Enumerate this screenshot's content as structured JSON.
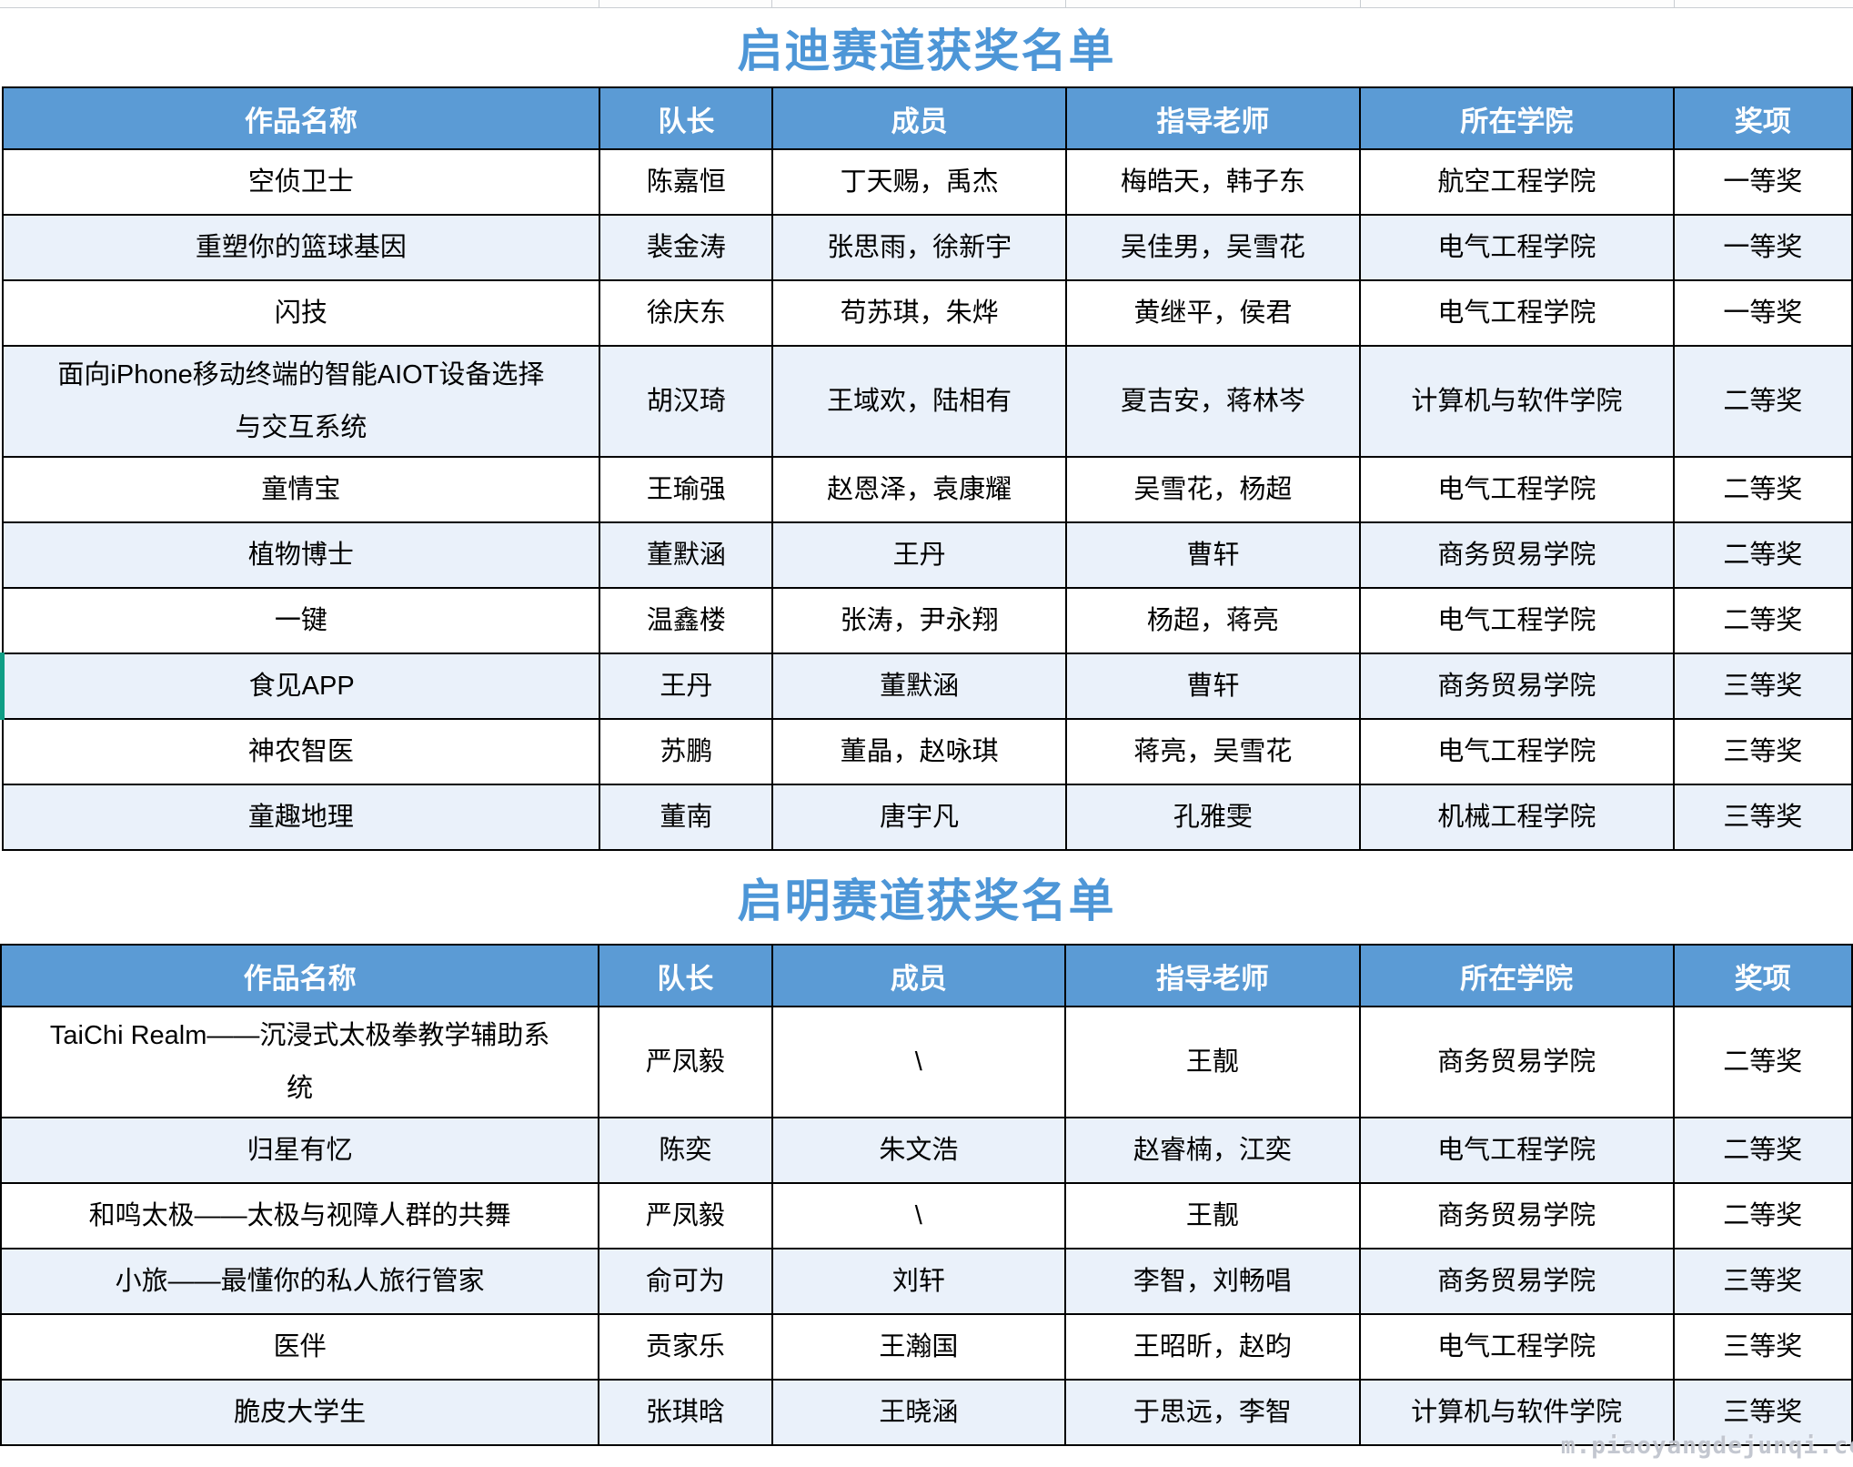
{
  "colors": {
    "header_bg": "#5B9BD5",
    "header_text": "#FFFFFF",
    "row_alt": "#EAF1FA",
    "title_color": "#4D96D7",
    "highlight_green": "#0F9E85",
    "border": "#000000"
  },
  "watermark": "m.piaoyangdejunqi.co",
  "sections": [
    {
      "title": "启迪赛道获奖名单",
      "columns": [
        "作品名称",
        "队长",
        "成员",
        "指导老师",
        "所在学院",
        "奖项"
      ],
      "highlighted_row": 7,
      "rows": [
        [
          "空侦卫士",
          "陈嘉恒",
          "丁天赐，禹杰",
          "梅皓天，韩子东",
          "航空工程学院",
          "一等奖"
        ],
        [
          "重塑你的篮球基因",
          "裴金涛",
          "张思雨，徐新宇",
          "吴佳男，吴雪花",
          "电气工程学院",
          "一等奖"
        ],
        [
          "闪技",
          "徐庆东",
          "苟苏琪，朱烨",
          "黄继平，侯君",
          "电气工程学院",
          "一等奖"
        ],
        [
          "面向iPhone移动终端的智能AIOT设备选择与交互系统",
          "胡汉琦",
          "王域欢，陆相有",
          "夏吉安，蒋林岑",
          "计算机与软件学院",
          "二等奖"
        ],
        [
          "童情宝",
          "王瑜强",
          "赵恩泽，袁康耀",
          "吴雪花，杨超",
          "电气工程学院",
          "二等奖"
        ],
        [
          "植物博士",
          "董默涵",
          "王丹",
          "曹轩",
          "商务贸易学院",
          "二等奖"
        ],
        [
          "一键",
          "温鑫楼",
          "张涛，尹永翔",
          "杨超，蒋亮",
          "电气工程学院",
          "二等奖"
        ],
        [
          "食见APP",
          "王丹",
          "董默涵",
          "曹轩",
          "商务贸易学院",
          "三等奖"
        ],
        [
          "神农智医",
          "苏鹏",
          "董晶，赵咏琪",
          "蒋亮，吴雪花",
          "电气工程学院",
          "三等奖"
        ],
        [
          "童趣地理",
          "董南",
          "唐宇凡",
          "孔雅雯",
          "机械工程学院",
          "三等奖"
        ]
      ]
    },
    {
      "title": "启明赛道获奖名单",
      "columns": [
        "作品名称",
        "队长",
        "成员",
        "指导老师",
        "所在学院",
        "奖项"
      ],
      "highlighted_row": -1,
      "rows": [
        [
          "TaiChi Realm——沉浸式太极拳教学辅助系统",
          "严凤毅",
          "\\",
          "王靓",
          "商务贸易学院",
          "二等奖"
        ],
        [
          "归星有忆",
          "陈奕",
          "朱文浩",
          "赵睿楠，江奕",
          "电气工程学院",
          "二等奖"
        ],
        [
          "和鸣太极——太极与视障人群的共舞",
          "严凤毅",
          "\\",
          "王靓",
          "商务贸易学院",
          "二等奖"
        ],
        [
          "小旅——最懂你的私人旅行管家",
          "俞可为",
          "刘轩",
          "李智，刘畅唱",
          "商务贸易学院",
          "三等奖"
        ],
        [
          "医伴",
          "贡家乐",
          "王瀚国",
          "王昭昕，赵昀",
          "电气工程学院",
          "三等奖"
        ],
        [
          "脆皮大学生",
          "张琪晗",
          "王晓涵",
          "于思远，李智",
          "计算机与软件学院",
          "三等奖"
        ]
      ]
    }
  ]
}
